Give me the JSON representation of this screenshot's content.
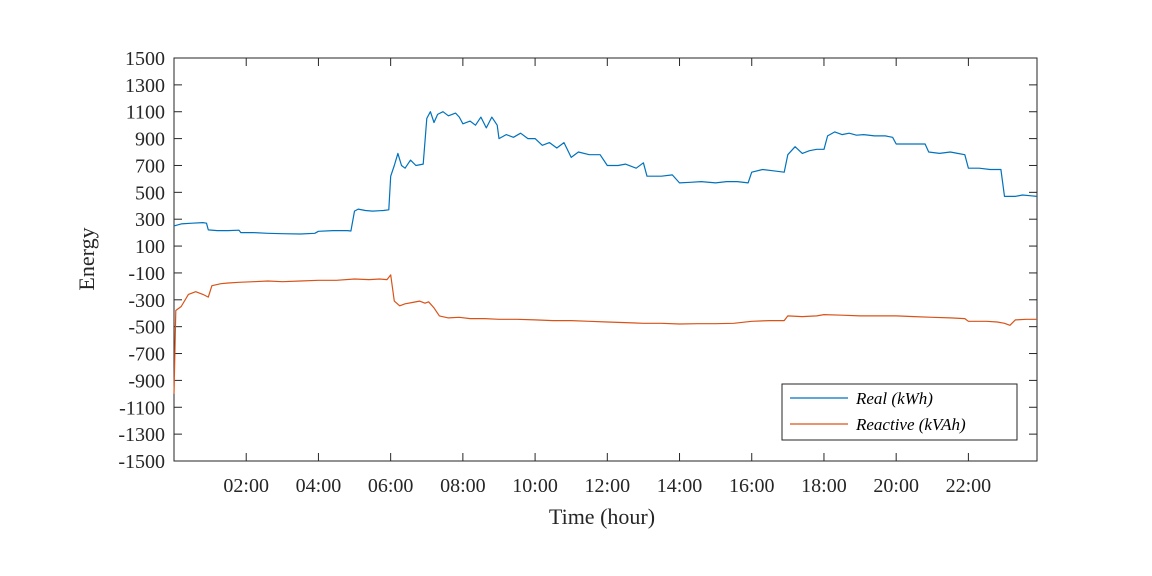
{
  "chart_data": {
    "type": "line",
    "title": "",
    "xlabel": "Time (hour)",
    "ylabel": "Energy",
    "xlim": [
      0,
      23.9
    ],
    "ylim": [
      -1500,
      1500
    ],
    "xticks": [
      {
        "value": 2,
        "label": "02:00"
      },
      {
        "value": 4,
        "label": "04:00"
      },
      {
        "value": 6,
        "label": "06:00"
      },
      {
        "value": 8,
        "label": "08:00"
      },
      {
        "value": 10,
        "label": "10:00"
      },
      {
        "value": 12,
        "label": "12:00"
      },
      {
        "value": 14,
        "label": "14:00"
      },
      {
        "value": 16,
        "label": "16:00"
      },
      {
        "value": 18,
        "label": "18:00"
      },
      {
        "value": 20,
        "label": "20:00"
      },
      {
        "value": 22,
        "label": "22:00"
      }
    ],
    "yticks": [
      1500,
      1300,
      1100,
      900,
      700,
      500,
      300,
      100,
      -100,
      -300,
      -500,
      -700,
      -900,
      -1100,
      -1300,
      -1500
    ],
    "ytick_labels": [
      "1500",
      "1300",
      "1100",
      "900",
      "700",
      "500",
      "300",
      "100",
      "-100",
      "-300",
      "-500",
      "-700",
      "-900",
      "-1100",
      "-1300",
      "-1500"
    ],
    "grid": false,
    "legend_position": "bottom-right",
    "series": [
      {
        "name": "Real (kWh)",
        "color": "#0072BD",
        "points": [
          [
            0.0,
            250
          ],
          [
            0.2,
            265
          ],
          [
            0.5,
            270
          ],
          [
            0.8,
            275
          ],
          [
            0.9,
            270
          ],
          [
            0.95,
            220
          ],
          [
            1.2,
            215
          ],
          [
            1.5,
            215
          ],
          [
            1.8,
            218
          ],
          [
            1.85,
            200
          ],
          [
            2.2,
            200
          ],
          [
            2.6,
            195
          ],
          [
            3.0,
            192
          ],
          [
            3.5,
            190
          ],
          [
            3.9,
            195
          ],
          [
            4.0,
            210
          ],
          [
            4.4,
            215
          ],
          [
            4.8,
            215
          ],
          [
            4.9,
            212
          ],
          [
            5.0,
            360
          ],
          [
            5.1,
            375
          ],
          [
            5.3,
            365
          ],
          [
            5.5,
            360
          ],
          [
            5.8,
            365
          ],
          [
            5.95,
            370
          ],
          [
            6.0,
            620
          ],
          [
            6.1,
            700
          ],
          [
            6.2,
            790
          ],
          [
            6.3,
            700
          ],
          [
            6.4,
            680
          ],
          [
            6.55,
            740
          ],
          [
            6.7,
            700
          ],
          [
            6.9,
            710
          ],
          [
            7.0,
            1050
          ],
          [
            7.1,
            1100
          ],
          [
            7.2,
            1020
          ],
          [
            7.3,
            1080
          ],
          [
            7.45,
            1100
          ],
          [
            7.6,
            1070
          ],
          [
            7.8,
            1090
          ],
          [
            7.9,
            1060
          ],
          [
            8.0,
            1010
          ],
          [
            8.2,
            1030
          ],
          [
            8.35,
            1000
          ],
          [
            8.5,
            1060
          ],
          [
            8.65,
            980
          ],
          [
            8.8,
            1060
          ],
          [
            8.95,
            1000
          ],
          [
            9.0,
            900
          ],
          [
            9.2,
            930
          ],
          [
            9.4,
            910
          ],
          [
            9.6,
            940
          ],
          [
            9.8,
            900
          ],
          [
            10.0,
            900
          ],
          [
            10.2,
            850
          ],
          [
            10.4,
            870
          ],
          [
            10.6,
            830
          ],
          [
            10.8,
            870
          ],
          [
            11.0,
            760
          ],
          [
            11.2,
            800
          ],
          [
            11.5,
            780
          ],
          [
            11.8,
            780
          ],
          [
            12.0,
            700
          ],
          [
            12.3,
            700
          ],
          [
            12.5,
            710
          ],
          [
            12.8,
            680
          ],
          [
            13.0,
            720
          ],
          [
            13.1,
            620
          ],
          [
            13.5,
            620
          ],
          [
            13.8,
            630
          ],
          [
            14.0,
            570
          ],
          [
            14.3,
            575
          ],
          [
            14.6,
            580
          ],
          [
            15.0,
            570
          ],
          [
            15.3,
            580
          ],
          [
            15.6,
            580
          ],
          [
            15.9,
            570
          ],
          [
            16.0,
            650
          ],
          [
            16.3,
            670
          ],
          [
            16.6,
            660
          ],
          [
            16.9,
            650
          ],
          [
            17.0,
            780
          ],
          [
            17.2,
            840
          ],
          [
            17.4,
            790
          ],
          [
            17.6,
            810
          ],
          [
            17.8,
            820
          ],
          [
            18.0,
            820
          ],
          [
            18.1,
            920
          ],
          [
            18.3,
            950
          ],
          [
            18.5,
            930
          ],
          [
            18.7,
            940
          ],
          [
            18.9,
            925
          ],
          [
            19.1,
            930
          ],
          [
            19.4,
            920
          ],
          [
            19.7,
            920
          ],
          [
            19.9,
            910
          ],
          [
            20.0,
            860
          ],
          [
            20.3,
            860
          ],
          [
            20.6,
            860
          ],
          [
            20.8,
            860
          ],
          [
            20.9,
            800
          ],
          [
            21.2,
            790
          ],
          [
            21.5,
            800
          ],
          [
            21.7,
            790
          ],
          [
            21.9,
            780
          ],
          [
            22.0,
            680
          ],
          [
            22.3,
            680
          ],
          [
            22.6,
            670
          ],
          [
            22.9,
            670
          ],
          [
            23.0,
            470
          ],
          [
            23.3,
            470
          ],
          [
            23.5,
            480
          ],
          [
            23.7,
            475
          ],
          [
            23.9,
            470
          ]
        ]
      },
      {
        "name": "Reactive (kVAh)",
        "color": "#D95319",
        "points": [
          [
            0.0,
            -1000
          ],
          [
            0.05,
            -380
          ],
          [
            0.2,
            -350
          ],
          [
            0.4,
            -260
          ],
          [
            0.6,
            -240
          ],
          [
            0.8,
            -260
          ],
          [
            0.95,
            -280
          ],
          [
            1.05,
            -195
          ],
          [
            1.3,
            -180
          ],
          [
            1.5,
            -175
          ],
          [
            1.8,
            -170
          ],
          [
            2.2,
            -165
          ],
          [
            2.6,
            -160
          ],
          [
            3.0,
            -165
          ],
          [
            3.5,
            -160
          ],
          [
            4.0,
            -155
          ],
          [
            4.5,
            -155
          ],
          [
            5.0,
            -145
          ],
          [
            5.4,
            -150
          ],
          [
            5.7,
            -145
          ],
          [
            5.9,
            -150
          ],
          [
            6.0,
            -115
          ],
          [
            6.1,
            -310
          ],
          [
            6.25,
            -345
          ],
          [
            6.4,
            -330
          ],
          [
            6.6,
            -320
          ],
          [
            6.8,
            -310
          ],
          [
            6.95,
            -325
          ],
          [
            7.05,
            -315
          ],
          [
            7.2,
            -360
          ],
          [
            7.35,
            -420
          ],
          [
            7.6,
            -435
          ],
          [
            7.9,
            -430
          ],
          [
            8.2,
            -440
          ],
          [
            8.6,
            -440
          ],
          [
            9.0,
            -445
          ],
          [
            9.5,
            -445
          ],
          [
            10.0,
            -450
          ],
          [
            10.5,
            -455
          ],
          [
            11.0,
            -455
          ],
          [
            11.5,
            -460
          ],
          [
            12.0,
            -465
          ],
          [
            12.5,
            -470
          ],
          [
            13.0,
            -475
          ],
          [
            13.5,
            -475
          ],
          [
            14.0,
            -480
          ],
          [
            14.5,
            -478
          ],
          [
            15.0,
            -478
          ],
          [
            15.5,
            -475
          ],
          [
            16.0,
            -460
          ],
          [
            16.5,
            -455
          ],
          [
            16.9,
            -455
          ],
          [
            17.0,
            -420
          ],
          [
            17.4,
            -425
          ],
          [
            17.8,
            -420
          ],
          [
            18.0,
            -410
          ],
          [
            18.5,
            -415
          ],
          [
            19.0,
            -420
          ],
          [
            19.5,
            -420
          ],
          [
            20.0,
            -420
          ],
          [
            20.5,
            -425
          ],
          [
            21.0,
            -430
          ],
          [
            21.5,
            -435
          ],
          [
            21.9,
            -440
          ],
          [
            22.0,
            -460
          ],
          [
            22.5,
            -460
          ],
          [
            22.8,
            -465
          ],
          [
            23.0,
            -475
          ],
          [
            23.15,
            -490
          ],
          [
            23.3,
            -450
          ],
          [
            23.6,
            -445
          ],
          [
            23.9,
            -445
          ]
        ]
      }
    ]
  }
}
